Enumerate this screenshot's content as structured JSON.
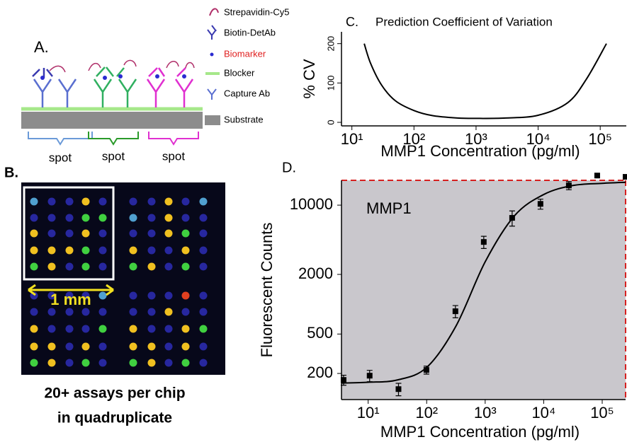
{
  "panel_a": {
    "label": "A.",
    "legend": [
      "Strepavidin-Cy5",
      "Biotin-DetAb",
      "Biomarker",
      "Blocker",
      "Capture Ab",
      "Substrate"
    ],
    "spots": [
      "spot",
      "spot",
      "spot"
    ]
  },
  "panel_b": {
    "label": "B.",
    "scale_label": "1 mm",
    "caption": [
      "20+ assays per chip",
      "in quadruplicate"
    ]
  },
  "chart_data": [
    {
      "type": "line",
      "panel_label": "C.",
      "title": "Prediction Coefficient of Variation",
      "x_label": "MMP1 Concentration (pg/ml)",
      "y_label": "% CV",
      "x_scale": "log",
      "x": [
        15.8,
        20,
        30,
        50,
        100,
        200,
        500,
        1000,
        3000,
        10000,
        30000,
        60000,
        126000
      ],
      "values": [
        200,
        150,
        95,
        55,
        30,
        17,
        11,
        10,
        11,
        18,
        50,
        110,
        200
      ],
      "color": "#000000",
      "xlim": [
        6.8,
        263000
      ],
      "ylim": [
        -9,
        230
      ],
      "xticks": [
        {
          "value": 10,
          "label": "10¹"
        },
        {
          "value": 100,
          "label": "10²"
        },
        {
          "value": 1000,
          "label": "10³"
        },
        {
          "value": 10000,
          "label": "10⁴"
        },
        {
          "value": 100000,
          "label": "10⁵"
        }
      ],
      "yticks": [
        0,
        100,
        200
      ]
    },
    {
      "type": "scatter",
      "panel_label": "D.",
      "annotation": "MMP1",
      "x_label": "MMP1 Concentration (pg/ml)",
      "y_label": "Fluorescent Counts",
      "x_scale": "log",
      "y_scale": "log",
      "background": "#c9c7cc",
      "border_color": "#d62020",
      "series": [
        {
          "color": "#000000",
          "x": [
            3.8,
            10.6,
            33,
            99,
            310,
            946,
            2890,
            8810,
            26900,
            82200,
            251000
          ],
          "values": [
            172,
            190,
            139,
            217,
            849,
            4250,
            7440,
            10300,
            15800,
            19900,
            19300
          ],
          "errors": [
            20,
            25,
            20,
            20,
            120,
            600,
            1300,
            1200,
            1500,
            800,
            800
          ]
        },
        {
          "color": "#000000",
          "style": "line",
          "x": [
            3.5,
            10,
            31.6,
            100,
            316,
            1000,
            3160,
            10000,
            31600,
            100000,
            251000
          ],
          "values": [
            160,
            163,
            172,
            230,
            600,
            2680,
            7800,
            12800,
            15800,
            16600,
            17000
          ]
        }
      ],
      "xlim": [
        3.5,
        251000
      ],
      "ylim": [
        109,
        17800
      ],
      "xticks": [
        {
          "value": 10,
          "label": "10¹"
        },
        {
          "value": 100,
          "label": "10²"
        },
        {
          "value": 1000,
          "label": "10³"
        },
        {
          "value": 10000,
          "label": "10⁴"
        },
        {
          "value": 100000,
          "label": "10⁵"
        }
      ],
      "yticks": [
        200,
        500,
        2000,
        10000
      ]
    }
  ]
}
